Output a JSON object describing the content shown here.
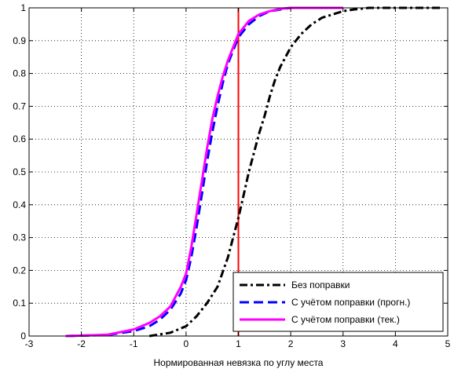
{
  "chart_data": {
    "type": "line",
    "title": "",
    "xlabel": "Нормированная невязка по углу места",
    "ylabel": "",
    "xlim": [
      -3,
      5
    ],
    "ylim": [
      0,
      1
    ],
    "xticks": [
      "-3",
      "-2",
      "-1",
      "0",
      "1",
      "2",
      "3",
      "4",
      "5"
    ],
    "yticks": [
      "0",
      "0.1",
      "0.2",
      "0.3",
      "0.4",
      "0.5",
      "0.6",
      "0.7",
      "0.8",
      "0.9",
      "1"
    ],
    "grid": true,
    "legend_position": "bottom-right",
    "series": [
      {
        "name": "Без поправки",
        "color": "#000000",
        "style": "dash-dot",
        "x": [
          -0.7,
          -0.5,
          -0.3,
          0.0,
          0.2,
          0.4,
          0.6,
          0.8,
          0.9,
          1.0,
          1.1,
          1.2,
          1.3,
          1.4,
          1.5,
          1.6,
          1.7,
          1.8,
          1.9,
          2.0,
          2.2,
          2.4,
          2.6,
          2.8,
          3.0,
          3.2,
          3.5,
          4.0,
          4.5,
          4.9
        ],
        "y": [
          0.0,
          0.005,
          0.01,
          0.03,
          0.06,
          0.1,
          0.15,
          0.24,
          0.3,
          0.36,
          0.43,
          0.5,
          0.56,
          0.62,
          0.67,
          0.73,
          0.78,
          0.82,
          0.85,
          0.88,
          0.92,
          0.95,
          0.97,
          0.98,
          0.99,
          0.995,
          1.0,
          1.0,
          1.0,
          1.0
        ]
      },
      {
        "name": "С учётом поправки (прогн.)",
        "color": "#0000ff",
        "style": "dashed",
        "x": [
          -2.3,
          -1.5,
          -1.0,
          -0.7,
          -0.5,
          -0.3,
          -0.1,
          0.0,
          0.1,
          0.2,
          0.3,
          0.4,
          0.5,
          0.6,
          0.7,
          0.8,
          0.9,
          1.0,
          1.2,
          1.4,
          1.6,
          1.8,
          2.0,
          2.5,
          3.0
        ],
        "y": [
          0.0,
          0.003,
          0.015,
          0.03,
          0.05,
          0.08,
          0.13,
          0.17,
          0.24,
          0.33,
          0.43,
          0.53,
          0.62,
          0.7,
          0.77,
          0.83,
          0.87,
          0.91,
          0.95,
          0.975,
          0.99,
          0.995,
          1.0,
          1.0,
          1.0
        ]
      },
      {
        "name": "С учётом поправки (тек.)",
        "color": "#ff00ff",
        "style": "solid",
        "x": [
          -2.3,
          -1.5,
          -1.0,
          -0.7,
          -0.5,
          -0.3,
          -0.1,
          0.0,
          0.1,
          0.2,
          0.3,
          0.4,
          0.5,
          0.6,
          0.7,
          0.8,
          0.9,
          1.0,
          1.2,
          1.4,
          1.6,
          1.8,
          2.0,
          2.5,
          3.0
        ],
        "y": [
          0.0,
          0.004,
          0.02,
          0.04,
          0.06,
          0.09,
          0.15,
          0.19,
          0.27,
          0.37,
          0.47,
          0.57,
          0.66,
          0.73,
          0.79,
          0.84,
          0.88,
          0.92,
          0.96,
          0.98,
          0.99,
          0.997,
          1.0,
          1.0,
          1.0
        ]
      }
    ],
    "annotations": [
      {
        "type": "vline",
        "x": 1,
        "color": "#ff0000"
      }
    ]
  }
}
